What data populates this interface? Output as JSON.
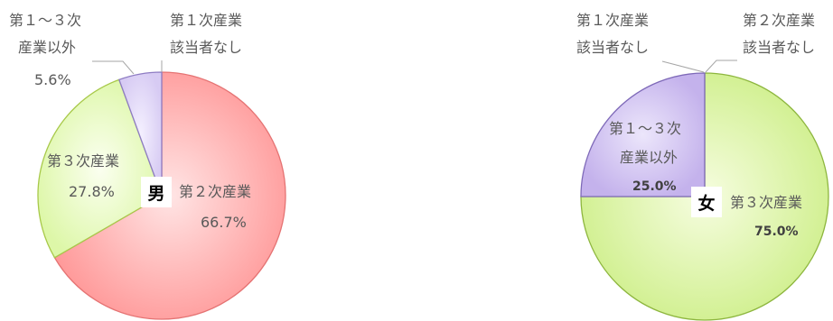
{
  "chart_data": [
    {
      "type": "pie",
      "center_label": "男",
      "slices": [
        {
          "name": "第１次産業該当者なし",
          "value": 0,
          "label_lines": [
            "第１次産業",
            "該当者なし"
          ],
          "value_text": "",
          "color": "#FFFFFF"
        },
        {
          "name": "第２次産業",
          "value": 66.7,
          "label_lines": [
            "第２次産業"
          ],
          "value_text": "66.7%",
          "color": "#FF9A9A"
        },
        {
          "name": "第３次産業",
          "value": 27.8,
          "label_lines": [
            "第３次産業"
          ],
          "value_text": "27.8%",
          "color": "#E6FAB4"
        },
        {
          "name": "第１〜３次産業以外",
          "value": 5.6,
          "label_lines": [
            "第１〜３次",
            "産業以外"
          ],
          "value_text": "5.6%",
          "color": "#DDD3F5"
        }
      ]
    },
    {
      "type": "pie",
      "center_label": "女",
      "slices": [
        {
          "name": "第２次産業該当者なし",
          "value": 0,
          "label_lines": [
            "第２次産業",
            "該当者なし"
          ],
          "value_text": "",
          "color": "#FFFFFF"
        },
        {
          "name": "第３次産業",
          "value": 75.0,
          "label_lines": [
            "第３次産業"
          ],
          "value_text": "75.0%",
          "color": "#D9F59B"
        },
        {
          "name": "第１〜３次産業以外",
          "value": 25.0,
          "label_lines": [
            "第１〜３次",
            "産業以外"
          ],
          "value_text": "25.0%",
          "color": "#C9B8EE"
        },
        {
          "name": "第１次産業該当者なし",
          "value": 0,
          "label_lines": [
            "第１次産業",
            "該当者なし"
          ],
          "value_text": "",
          "color": "#FFFFFF"
        }
      ]
    }
  ]
}
